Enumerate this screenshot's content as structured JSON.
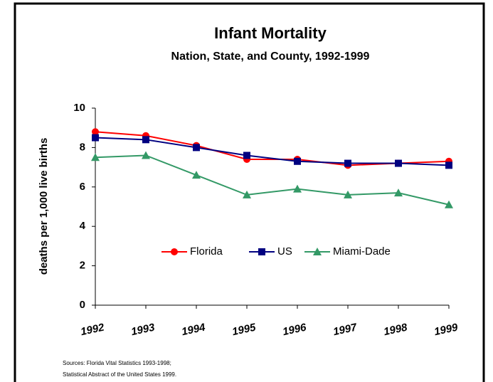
{
  "chart_data": {
    "type": "line",
    "title": "Infant Mortality",
    "subtitle": "Nation, State, and County, 1992-1999",
    "y_label": "deaths per 1,000 live births",
    "categories": [
      "1992",
      "1993",
      "1994",
      "1995",
      "1996",
      "1997",
      "1998",
      "1999"
    ],
    "series": [
      {
        "name": "Florida",
        "color": "#ff0000",
        "marker": "circle",
        "values": [
          8.8,
          8.6,
          8.1,
          7.4,
          7.4,
          7.1,
          7.2,
          7.3
        ]
      },
      {
        "name": "US",
        "color": "#000080",
        "marker": "square",
        "values": [
          8.5,
          8.4,
          8.0,
          7.6,
          7.3,
          7.2,
          7.2,
          7.1
        ]
      },
      {
        "name": "Miami-Dade",
        "color": "#339966",
        "marker": "triangle",
        "values": [
          7.5,
          7.6,
          6.6,
          5.6,
          5.9,
          5.6,
          5.7,
          5.1
        ]
      }
    ],
    "ylim": [
      0,
      10
    ],
    "yticks": [
      0,
      2,
      4,
      6,
      8,
      10
    ],
    "grid": false,
    "legend": "center",
    "sources": [
      "Sources: Florida Vital Statistics 1993-1998;",
      "Statistical Abstract of the United States 1999."
    ]
  }
}
